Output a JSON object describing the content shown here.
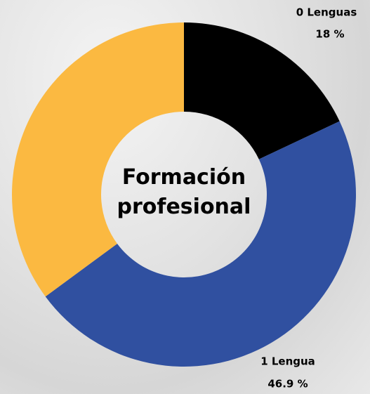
{
  "chart_data": {
    "type": "donut",
    "title": "Formación profesional",
    "categories": [
      "0 Lenguas",
      "1 Lengua",
      null
    ],
    "values": [
      18,
      46.9,
      35.1
    ],
    "value_labels": [
      "18 %",
      "46.9 %",
      null
    ],
    "colors": [
      "#000000",
      "#3050a0",
      "#fbb941"
    ]
  }
}
